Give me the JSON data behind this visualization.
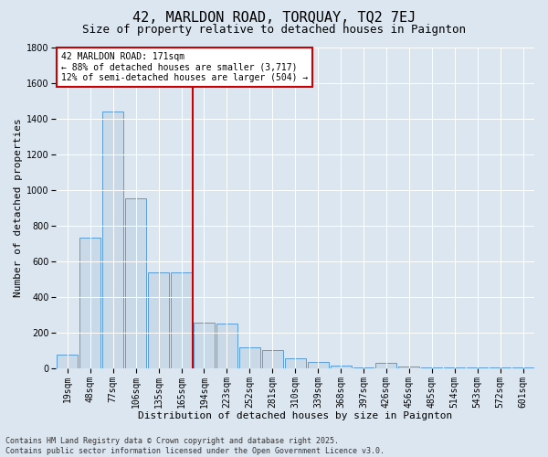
{
  "title": "42, MARLDON ROAD, TORQUAY, TQ2 7EJ",
  "subtitle": "Size of property relative to detached houses in Paignton",
  "xlabel": "Distribution of detached houses by size in Paignton",
  "ylabel": "Number of detached properties",
  "categories": [
    "19sqm",
    "48sqm",
    "77sqm",
    "106sqm",
    "135sqm",
    "165sqm",
    "194sqm",
    "223sqm",
    "252sqm",
    "281sqm",
    "310sqm",
    "339sqm",
    "368sqm",
    "397sqm",
    "426sqm",
    "456sqm",
    "485sqm",
    "514sqm",
    "543sqm",
    "572sqm",
    "601sqm"
  ],
  "values": [
    75,
    730,
    1440,
    950,
    540,
    540,
    255,
    250,
    115,
    100,
    55,
    35,
    15,
    5,
    30,
    10,
    5,
    5,
    3,
    3,
    3
  ],
  "bar_color": "#c9d9e8",
  "bar_edge_color": "#5b9bd5",
  "vline_x": 5.5,
  "annotation_text": "42 MARLDON ROAD: 171sqm\n← 88% of detached houses are smaller (3,717)\n12% of semi-detached houses are larger (504) →",
  "annotation_box_color": "#ffffff",
  "annotation_box_edge": "#cc0000",
  "vline_color": "#cc0000",
  "background_color": "#dce6f0",
  "plot_bg_color": "#dce6f0",
  "footer_line1": "Contains HM Land Registry data © Crown copyright and database right 2025.",
  "footer_line2": "Contains public sector information licensed under the Open Government Licence v3.0.",
  "ylim": [
    0,
    1800
  ],
  "yticks": [
    0,
    200,
    400,
    600,
    800,
    1000,
    1200,
    1400,
    1600,
    1800
  ],
  "title_fontsize": 11,
  "subtitle_fontsize": 9,
  "axis_label_fontsize": 8,
  "tick_fontsize": 7,
  "annotation_fontsize": 7,
  "footer_fontsize": 6
}
